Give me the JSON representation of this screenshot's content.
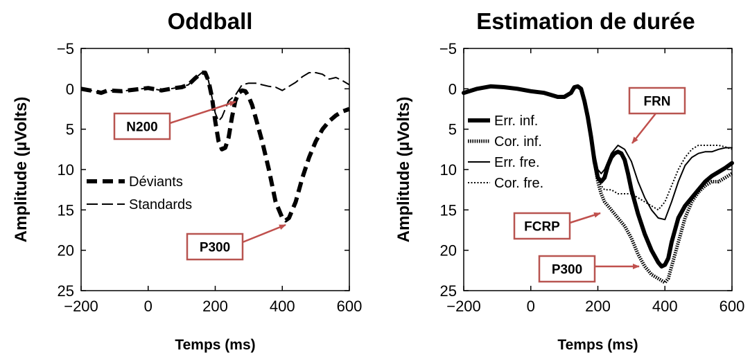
{
  "colors": {
    "annotation_border": "#b85450",
    "annotation_arrow": "#c0504d",
    "line": "#000000"
  },
  "chart_data": [
    {
      "type": "line",
      "title": "Oddball",
      "xlabel": "Temps (ms)",
      "ylabel": "Amplitude (µVolts)",
      "xlim": [
        -200,
        600
      ],
      "ylim": [
        -5,
        25
      ],
      "y_inverted": true,
      "xticks": [
        "−200",
        "0",
        "200",
        "400",
        "600"
      ],
      "yticks": [
        "−5",
        "0",
        "5",
        "10",
        "15",
        "20",
        "25"
      ],
      "legend": "center-left",
      "series": [
        {
          "name": "Déviants",
          "style": "thick-dashed",
          "x": [
            -200,
            -160,
            -140,
            -120,
            -80,
            -40,
            0,
            40,
            80,
            100,
            120,
            140,
            160,
            170,
            180,
            190,
            200,
            210,
            220,
            230,
            240,
            250,
            260,
            270,
            280,
            290,
            300,
            310,
            320,
            340,
            360,
            380,
            400,
            410,
            420,
            440,
            460,
            480,
            500,
            520,
            540,
            560,
            580,
            600
          ],
          "y": [
            0,
            0.3,
            0.5,
            0.2,
            0.3,
            0.1,
            -0.1,
            0.2,
            -0.1,
            -0.2,
            -0.5,
            -1.3,
            -2.0,
            -2.0,
            -1.0,
            1.0,
            4.0,
            6.5,
            7.5,
            7.3,
            6.0,
            3.5,
            1.5,
            0.5,
            0.2,
            0.3,
            1.0,
            2.0,
            3.5,
            6.5,
            10,
            14,
            16,
            16.3,
            16.0,
            14,
            11,
            8.5,
            6.5,
            5.0,
            4.0,
            3.3,
            2.8,
            2.5
          ]
        },
        {
          "name": "Standards",
          "style": "thin-dashed",
          "x": [
            -200,
            -160,
            -140,
            -120,
            -80,
            -40,
            0,
            40,
            80,
            100,
            120,
            140,
            160,
            170,
            180,
            190,
            200,
            210,
            220,
            230,
            240,
            260,
            280,
            300,
            320,
            340,
            360,
            380,
            400,
            420,
            440,
            460,
            480,
            500,
            520,
            540,
            560,
            580,
            600
          ],
          "y": [
            0,
            0.3,
            0.5,
            0.2,
            0.3,
            0.1,
            -0.1,
            0.2,
            -0.1,
            -0.2,
            -0.5,
            -1.3,
            -2.0,
            -2.0,
            -1.0,
            1.0,
            3.0,
            4.0,
            3.5,
            2.5,
            1.5,
            0.8,
            -0.5,
            -0.7,
            -0.7,
            -0.5,
            -0.3,
            -0.2,
            0.2,
            -0.3,
            -0.8,
            -1.5,
            -2.0,
            -2.0,
            -1.8,
            -1.2,
            -1.4,
            -1.0,
            -0.5
          ]
        }
      ],
      "annotations": [
        "N200",
        "P300"
      ]
    },
    {
      "type": "line",
      "title": "Estimation de durée",
      "xlabel": "Temps (ms)",
      "ylabel": "Amplitude (µVolts)",
      "xlim": [
        -200,
        600
      ],
      "ylim": [
        -5,
        25
      ],
      "y_inverted": true,
      "xticks": [
        "−200",
        "0",
        "200",
        "400",
        "600"
      ],
      "yticks": [
        "−5",
        "0",
        "5",
        "10",
        "15",
        "20",
        "25"
      ],
      "legend": "center-left",
      "series": [
        {
          "name": "Err. inf.",
          "style": "thick-solid",
          "x": [
            -200,
            -160,
            -120,
            -80,
            -40,
            0,
            40,
            80,
            100,
            120,
            130,
            140,
            150,
            160,
            170,
            180,
            190,
            200,
            210,
            220,
            230,
            240,
            250,
            260,
            270,
            280,
            290,
            300,
            320,
            340,
            360,
            380,
            390,
            400,
            410,
            420,
            440,
            460,
            480,
            500,
            520,
            540,
            560,
            580,
            600
          ],
          "y": [
            0.5,
            0,
            -0.3,
            -0.2,
            0,
            0.3,
            0.5,
            1.0,
            1.0,
            0.5,
            -0.2,
            -0.3,
            0,
            1.5,
            3.5,
            6.0,
            9.0,
            11.0,
            11.5,
            11.0,
            9.5,
            8.5,
            8.0,
            7.8,
            8.0,
            8.8,
            10.5,
            12.5,
            15.5,
            18.0,
            20.0,
            21.5,
            22.0,
            21.8,
            21.0,
            19.0,
            16.0,
            14.5,
            13.5,
            12.5,
            11.5,
            10.8,
            10.3,
            9.8,
            9.2
          ]
        },
        {
          "name": "Cor. inf.",
          "style": "thick-dotted",
          "x": [
            -200,
            -160,
            -120,
            -80,
            -40,
            0,
            40,
            80,
            100,
            120,
            130,
            140,
            150,
            160,
            170,
            180,
            190,
            200,
            210,
            220,
            240,
            260,
            280,
            300,
            320,
            340,
            360,
            380,
            400,
            410,
            420,
            440,
            460,
            480,
            500,
            520,
            540,
            560,
            580,
            600
          ],
          "y": [
            0.5,
            0,
            -0.3,
            -0.2,
            0,
            0.3,
            0.5,
            1.0,
            1.0,
            0.5,
            -0.2,
            -0.3,
            0,
            1.5,
            3.5,
            6.0,
            9.0,
            11.5,
            13.0,
            14.0,
            15.0,
            16.0,
            17.0,
            18.5,
            20.5,
            22.0,
            23.0,
            23.5,
            24.0,
            23.5,
            22.0,
            19.0,
            16.0,
            14.0,
            12.8,
            12.0,
            11.5,
            11.5,
            11.0,
            10.5
          ]
        },
        {
          "name": "Err. fre.",
          "style": "thin-solid",
          "x": [
            -200,
            -160,
            -120,
            -80,
            -40,
            0,
            40,
            80,
            100,
            120,
            130,
            140,
            150,
            160,
            170,
            180,
            190,
            200,
            210,
            220,
            240,
            260,
            280,
            300,
            320,
            340,
            360,
            380,
            400,
            420,
            440,
            460,
            480,
            500,
            520,
            540,
            560,
            580,
            600
          ],
          "y": [
            0.5,
            0,
            -0.3,
            -0.2,
            0,
            0.3,
            0.5,
            1.0,
            1.0,
            0.5,
            -0.2,
            -0.3,
            0,
            1.5,
            3.5,
            6.0,
            8.0,
            10.0,
            10.5,
            10.0,
            8.0,
            7.0,
            7.5,
            9.0,
            11.5,
            13.5,
            15.0,
            16.0,
            16.2,
            14.0,
            11.5,
            9.5,
            8.5,
            8.0,
            7.8,
            7.8,
            7.5,
            7.3,
            7.3
          ]
        },
        {
          "name": "Cor. fre.",
          "style": "thin-dotted",
          "x": [
            -200,
            -160,
            -120,
            -80,
            -40,
            0,
            40,
            80,
            100,
            120,
            130,
            140,
            150,
            160,
            170,
            180,
            190,
            200,
            210,
            220,
            240,
            260,
            280,
            300,
            320,
            340,
            360,
            380,
            400,
            420,
            440,
            460,
            480,
            500,
            520,
            540,
            560,
            580,
            600
          ],
          "y": [
            0.5,
            0,
            -0.3,
            -0.2,
            0,
            0.3,
            0.5,
            1.0,
            1.0,
            0.5,
            -0.2,
            -0.3,
            0,
            1.5,
            3.5,
            6.0,
            8.5,
            11.0,
            12.0,
            12.5,
            12.5,
            13.0,
            13.0,
            13.0,
            13.5,
            14.0,
            14.5,
            15.0,
            14.0,
            12.0,
            10.0,
            8.5,
            7.5,
            7.0,
            7.0,
            7.0,
            7.0,
            7.2,
            7.5
          ]
        }
      ],
      "annotations": [
        "FRN",
        "FCRP",
        "P300"
      ]
    }
  ]
}
